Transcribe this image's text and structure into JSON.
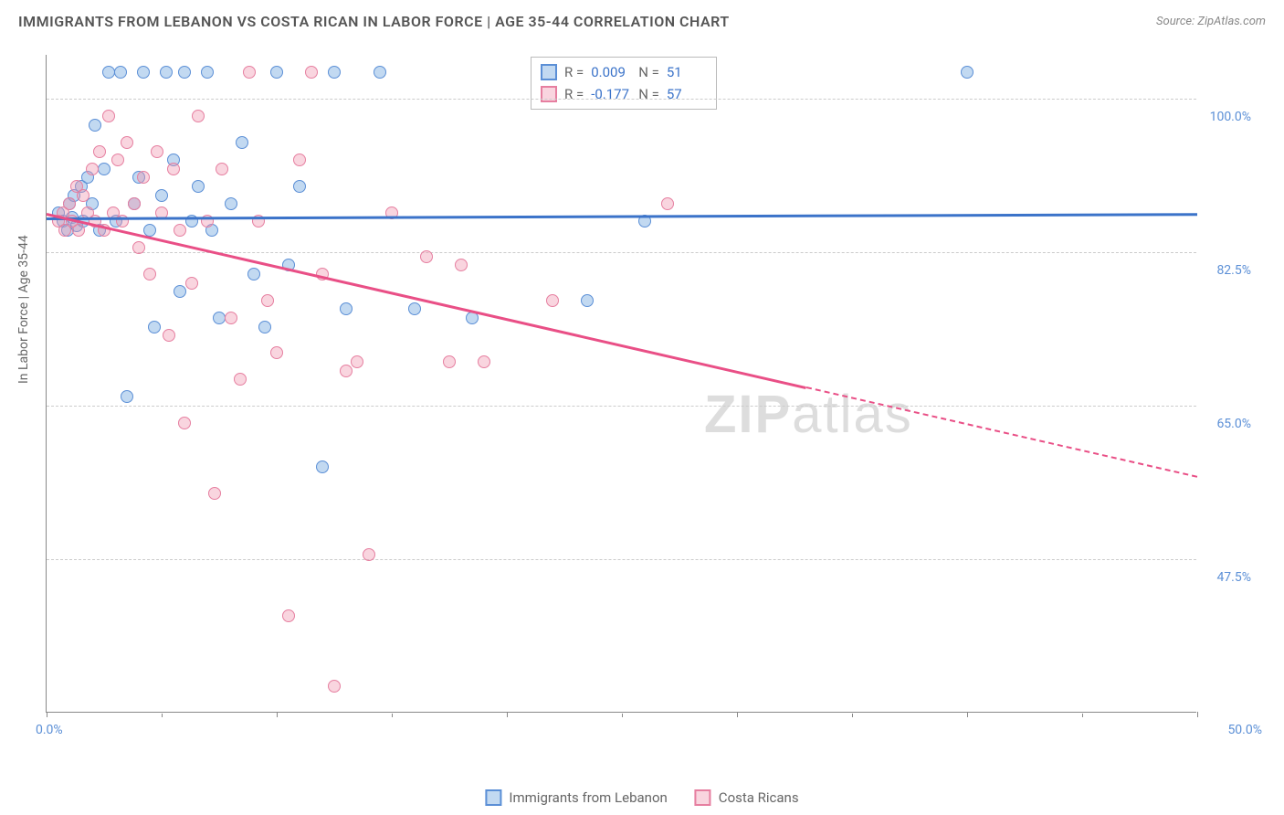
{
  "title": "IMMIGRANTS FROM LEBANON VS COSTA RICAN IN LABOR FORCE | AGE 35-44 CORRELATION CHART",
  "source": "Source: ZipAtlas.com",
  "y_axis_label": "In Labor Force | Age 35-44",
  "watermark": {
    "bold": "ZIP",
    "light": "atlas"
  },
  "chart": {
    "type": "scatter",
    "background_color": "#ffffff",
    "grid_color": "#cccccc",
    "axis_color": "#888888",
    "xlim": [
      0,
      50
    ],
    "ylim": [
      30,
      105
    ],
    "x_ticks_major": [
      0,
      10,
      20,
      30,
      40,
      50
    ],
    "x_tick_labels": {
      "left": "0.0%",
      "right": "50.0%"
    },
    "y_ticks": [
      {
        "value": 100.0,
        "label": "100.0%"
      },
      {
        "value": 82.5,
        "label": "82.5%"
      },
      {
        "value": 65.0,
        "label": "65.0%"
      },
      {
        "value": 47.5,
        "label": "47.5%"
      }
    ],
    "series": [
      {
        "name": "Immigrants from Lebanon",
        "marker_fill": "rgba(120,170,225,0.45)",
        "marker_stroke": "#5b8fd6",
        "trend_color": "#3b73c9",
        "stats": {
          "R": "0.009",
          "N": "51"
        },
        "trend": {
          "x1": 0,
          "y1": 86.5,
          "x2": 50,
          "y2": 87.0,
          "solid_until_x": 50
        },
        "points": [
          [
            0.5,
            87
          ],
          [
            0.7,
            86
          ],
          [
            0.9,
            85
          ],
          [
            1.0,
            88
          ],
          [
            1.1,
            86.5
          ],
          [
            1.2,
            89
          ],
          [
            1.3,
            85.5
          ],
          [
            1.5,
            90
          ],
          [
            1.6,
            86
          ],
          [
            1.8,
            91
          ],
          [
            2.0,
            88
          ],
          [
            2.1,
            97
          ],
          [
            2.3,
            85
          ],
          [
            2.5,
            92
          ],
          [
            2.7,
            103
          ],
          [
            3.0,
            86
          ],
          [
            3.2,
            103
          ],
          [
            3.5,
            66
          ],
          [
            3.8,
            88
          ],
          [
            4.0,
            91
          ],
          [
            4.2,
            103
          ],
          [
            4.5,
            85
          ],
          [
            4.7,
            74
          ],
          [
            5.0,
            89
          ],
          [
            5.2,
            103
          ],
          [
            5.5,
            93
          ],
          [
            5.8,
            78
          ],
          [
            6.0,
            103
          ],
          [
            6.3,
            86
          ],
          [
            6.6,
            90
          ],
          [
            7.0,
            103
          ],
          [
            7.2,
            85
          ],
          [
            7.5,
            75
          ],
          [
            8.0,
            88
          ],
          [
            8.5,
            95
          ],
          [
            9.0,
            80
          ],
          [
            9.5,
            74
          ],
          [
            10.0,
            103
          ],
          [
            10.5,
            81
          ],
          [
            11.0,
            90
          ],
          [
            12.0,
            58
          ],
          [
            12.5,
            103
          ],
          [
            13.0,
            76
          ],
          [
            14.5,
            103
          ],
          [
            16.0,
            76
          ],
          [
            18.5,
            75
          ],
          [
            23.5,
            77
          ],
          [
            26.0,
            86
          ],
          [
            40.0,
            103
          ]
        ]
      },
      {
        "name": "Costa Ricans",
        "marker_fill": "rgba(240,150,175,0.40)",
        "marker_stroke": "#e67fa0",
        "trend_color": "#e94f86",
        "stats": {
          "R": "-0.177",
          "N": "57"
        },
        "trend": {
          "x1": 0,
          "y1": 87.0,
          "x2": 50,
          "y2": 57.0,
          "solid_until_x": 33
        },
        "points": [
          [
            0.5,
            86
          ],
          [
            0.7,
            87
          ],
          [
            0.8,
            85
          ],
          [
            1.0,
            88
          ],
          [
            1.1,
            86
          ],
          [
            1.3,
            90
          ],
          [
            1.4,
            85
          ],
          [
            1.6,
            89
          ],
          [
            1.8,
            87
          ],
          [
            2.0,
            92
          ],
          [
            2.1,
            86
          ],
          [
            2.3,
            94
          ],
          [
            2.5,
            85
          ],
          [
            2.7,
            98
          ],
          [
            2.9,
            87
          ],
          [
            3.1,
            93
          ],
          [
            3.3,
            86
          ],
          [
            3.5,
            95
          ],
          [
            3.8,
            88
          ],
          [
            4.0,
            83
          ],
          [
            4.2,
            91
          ],
          [
            4.5,
            80
          ],
          [
            4.8,
            94
          ],
          [
            5.0,
            87
          ],
          [
            5.3,
            73
          ],
          [
            5.5,
            92
          ],
          [
            5.8,
            85
          ],
          [
            6.0,
            63
          ],
          [
            6.3,
            79
          ],
          [
            6.6,
            98
          ],
          [
            7.0,
            86
          ],
          [
            7.3,
            55
          ],
          [
            7.6,
            92
          ],
          [
            8.0,
            75
          ],
          [
            8.4,
            68
          ],
          [
            8.8,
            103
          ],
          [
            9.2,
            86
          ],
          [
            9.6,
            77
          ],
          [
            10.0,
            71
          ],
          [
            10.5,
            41
          ],
          [
            11.0,
            93
          ],
          [
            11.5,
            103
          ],
          [
            12.0,
            80
          ],
          [
            12.5,
            33
          ],
          [
            13.0,
            69
          ],
          [
            13.5,
            70
          ],
          [
            14.0,
            48
          ],
          [
            15.0,
            87
          ],
          [
            16.5,
            82
          ],
          [
            17.5,
            70
          ],
          [
            18.0,
            81
          ],
          [
            19.0,
            70
          ],
          [
            22.0,
            77
          ],
          [
            27.0,
            88
          ]
        ]
      }
    ]
  },
  "legend": {
    "series1_label": "Immigrants from Lebanon",
    "series2_label": "Costa Ricans"
  },
  "stats_box": {
    "r_label": "R =",
    "n_label": "N ="
  }
}
